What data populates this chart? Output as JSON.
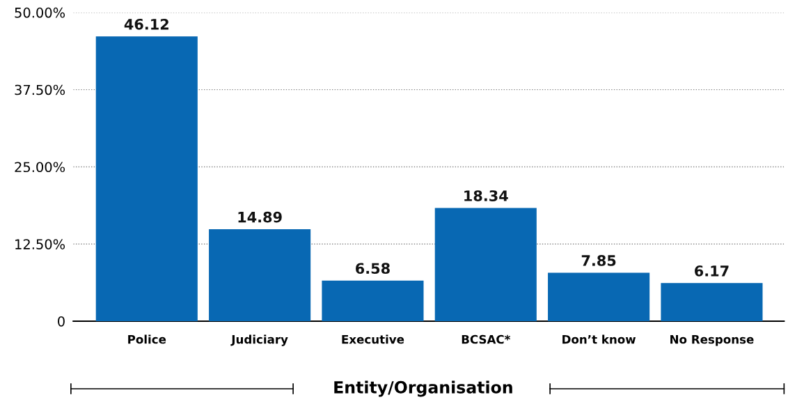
{
  "chart_data": {
    "type": "bar",
    "xlabel": "Entity/Organisation",
    "categories": [
      "Police",
      "Judiciary",
      "Executive",
      "BCSAC*",
      "Don’t know",
      "No Response"
    ],
    "values": [
      46.12,
      14.89,
      6.58,
      18.34,
      7.85,
      6.17
    ],
    "color": "#0868b3",
    "ylim": [
      0,
      50
    ],
    "yticks": [
      {
        "value": 0,
        "label": "0"
      },
      {
        "value": 12.5,
        "label": "12.50%"
      },
      {
        "value": 25,
        "label": "25.00%"
      },
      {
        "value": 37.5,
        "label": "37.50%"
      },
      {
        "value": 50,
        "label": "50.00%"
      }
    ],
    "grid": "y",
    "data_labels": true,
    "legend": false
  }
}
